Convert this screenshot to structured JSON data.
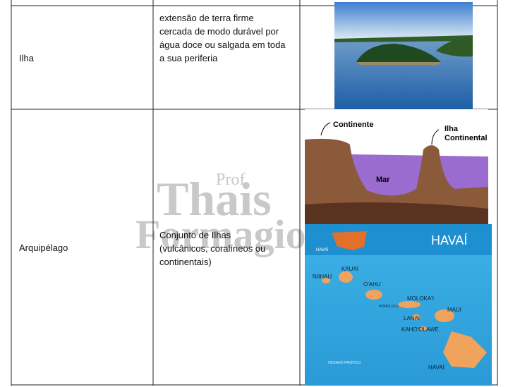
{
  "rows": [
    {
      "term": "Ilha",
      "description": [
        "extensão de terra firme",
        "cercada de modo durável por",
        "água doce ou salgada em toda",
        "a sua periferia"
      ]
    },
    {
      "term": "Arquipélago",
      "description": [
        "Conjunto de Ilhas",
        "(vulcânicos, coralíneos ou",
        "continentais)"
      ]
    }
  ],
  "watermark": [
    "Prof",
    "Thais",
    "Formagio"
  ],
  "diagram": {
    "continent": "Continente",
    "island": [
      "Ilha",
      "Continental"
    ],
    "sea": "Mar"
  },
  "map": {
    "title": "HAVAÍ",
    "inset_label": "HAVAÍ",
    "islands": [
      "NIIHAU",
      "KAUAI",
      "O'AHU",
      "MOLOKA'I",
      "MAUI",
      "LANAI",
      "KAHO'OLAWE",
      "HAVAÍ"
    ],
    "city": "HONOLULU",
    "ocean": "OCEANO PACÍFICO"
  }
}
